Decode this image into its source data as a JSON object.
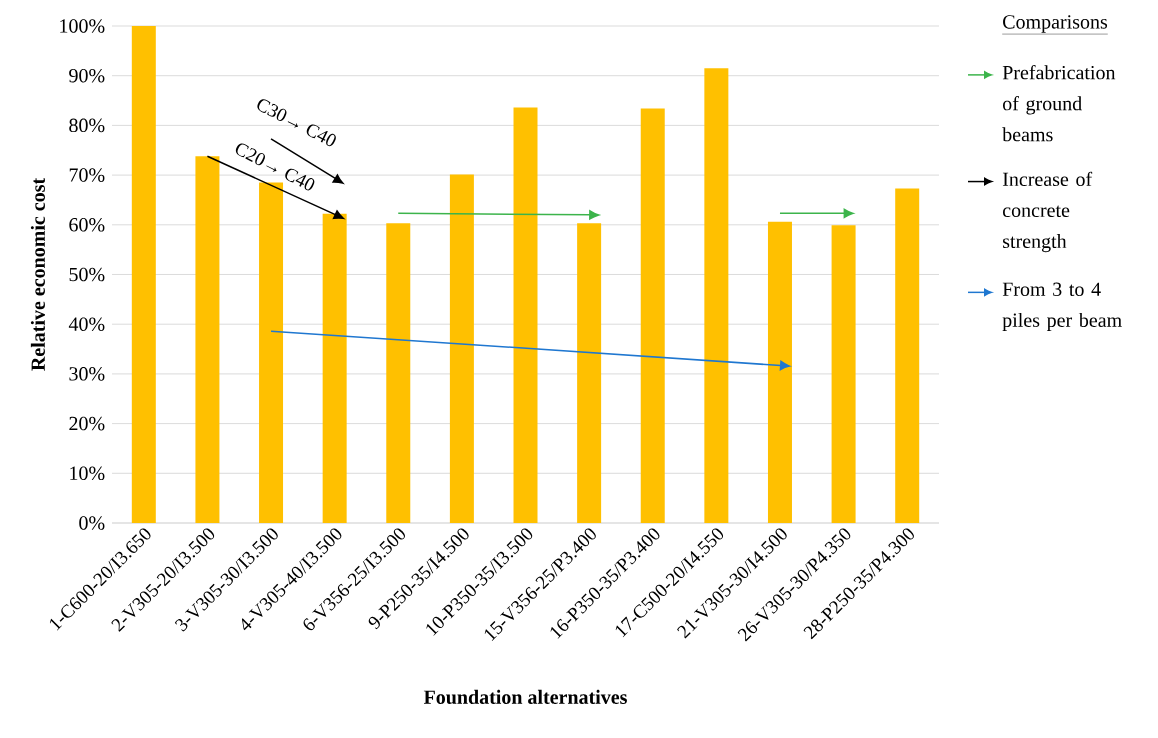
{
  "chart_data": {
    "type": "bar",
    "xlabel": "Foundation alternatives",
    "ylabel": "Relative economic cost",
    "legend_title": "Comparisons",
    "legend": "right",
    "grid": "y",
    "categories": [
      "1-C600-20/I3.650",
      "2-V305-20/I3.500",
      "3-V305-30/I3.500",
      "4-V305-40/I3.500",
      "6-V356-25/I3.500",
      "9-P250-35/I4.500",
      "10-P350-35/I3.500",
      "15-V356-25/P3.400",
      "16-P350-35/P3.400",
      "17-C500-20/I4.550",
      "21-V305-30/I4.500",
      "26-V305-30/P4.350",
      "28-P250-35/P4.300"
    ],
    "ylim": [
      0,
      100
    ],
    "yticks": [
      {
        "value": 0,
        "label": "0%"
      },
      {
        "value": 10,
        "label": "10%"
      },
      {
        "value": 20,
        "label": "20%"
      },
      {
        "value": 30,
        "label": "30%"
      },
      {
        "value": 40,
        "label": "40%"
      },
      {
        "value": 50,
        "label": "50%"
      },
      {
        "value": 60,
        "label": "60%"
      },
      {
        "value": 70,
        "label": "70%"
      },
      {
        "value": 80,
        "label": "80%"
      },
      {
        "value": 90,
        "label": "90%"
      },
      {
        "value": 100,
        "label": "100%"
      }
    ],
    "series": [
      {
        "color": "#ffc000",
        "values": [
          100,
          73.8,
          68.5,
          62.2,
          60.3,
          70.1,
          83.6,
          60.3,
          83.4,
          91.5,
          60.6,
          59.9,
          67.3
        ]
      },
      {
        "type": "line",
        "name": "Prefabrication of ground beams",
        "color": "#3cb44b",
        "x": [
          "6-V356-25/I3.500",
          "15-V356-25/P3.400"
        ],
        "values": [
          62.3,
          62.0
        ]
      },
      {
        "type": "line",
        "color": "#3cb44b",
        "x": [
          "21-V305-30/I4.500",
          "26-V305-30/P4.350"
        ],
        "values": [
          62.3,
          62.3
        ]
      },
      {
        "type": "line",
        "name": "Increase of concrete strength",
        "color": "#000000",
        "x": [
          "3-V305-30/I3.500",
          "4-V305-40/I3.500"
        ],
        "values": [
          77.3,
          69.4
        ]
      },
      {
        "type": "line",
        "color": "#000000",
        "x": [
          "2-V305-20/I3.500",
          "4-V305-40/I3.500"
        ],
        "values": [
          73.8,
          62.1
        ]
      },
      {
        "type": "line",
        "name": "From 3 to 4 piles per beam",
        "color": "#1f77d0",
        "x": [
          "3-V305-30/I3.500",
          "21-V305-30/I4.500"
        ],
        "values": [
          38.6,
          31.7
        ]
      }
    ],
    "annotations": [
      "C30→ C40",
      "C20→ C40"
    ]
  }
}
